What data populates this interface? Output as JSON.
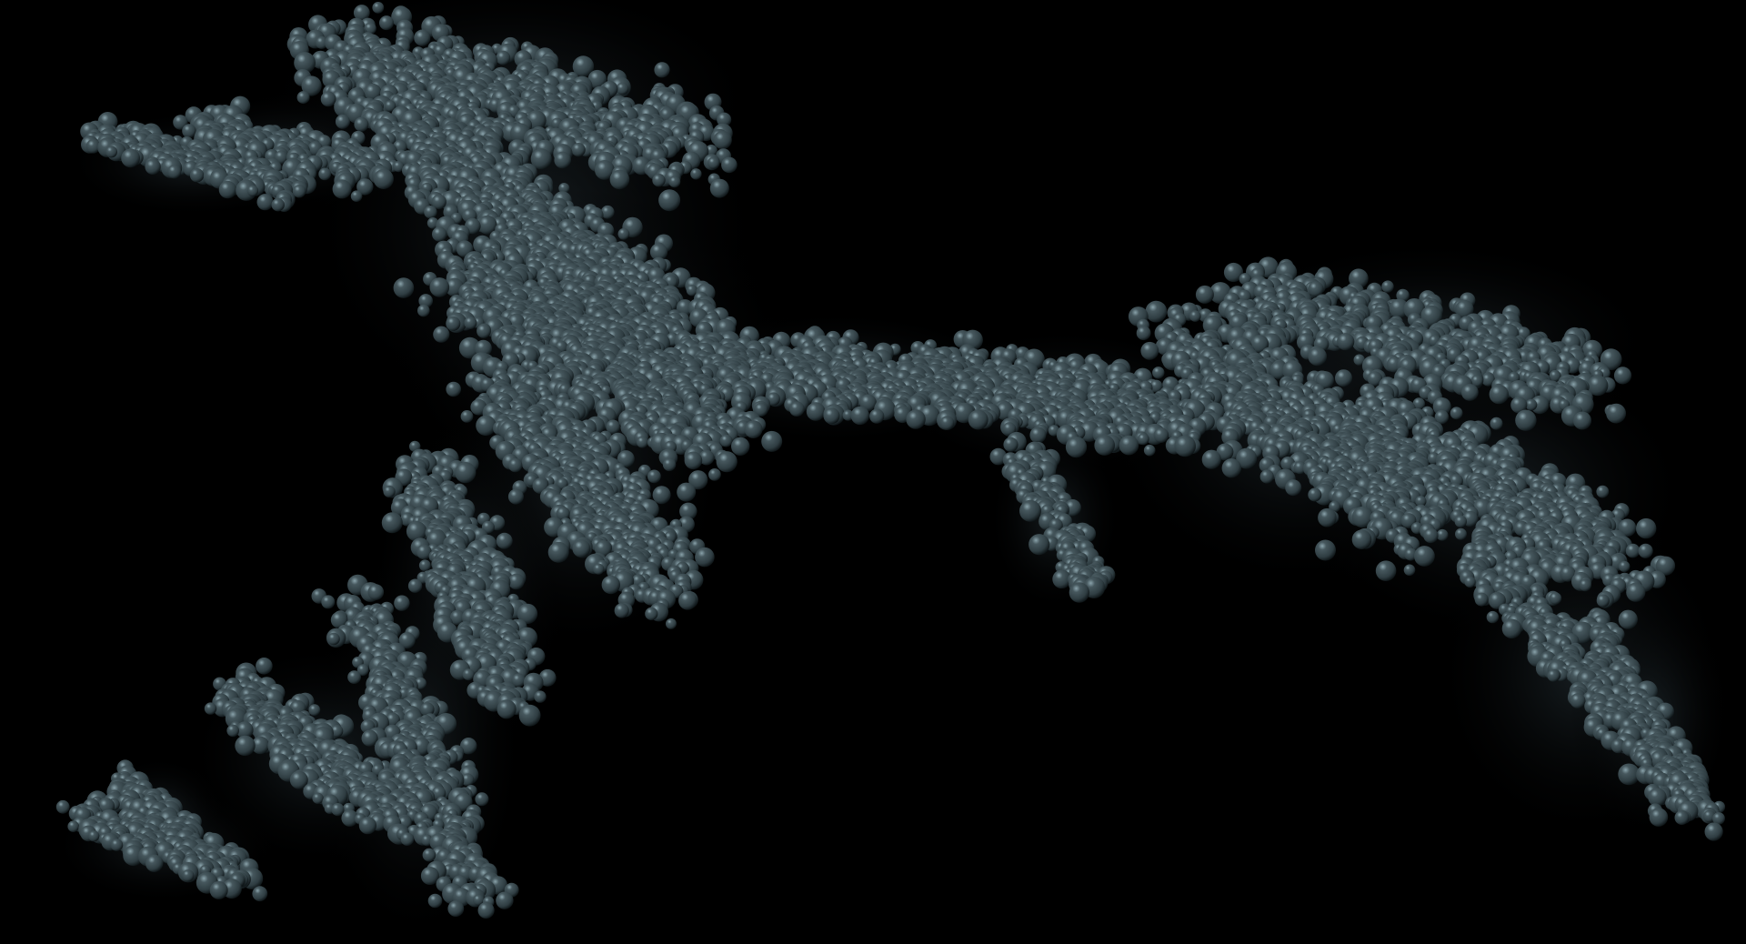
{
  "scene": {
    "subject": "molecular-surface-render",
    "background_color": "#000000",
    "atom_color": "#2f3d42",
    "atom_highlight_color": "#8aa3ab",
    "atom_shadow_color": "#0a1012"
  }
}
